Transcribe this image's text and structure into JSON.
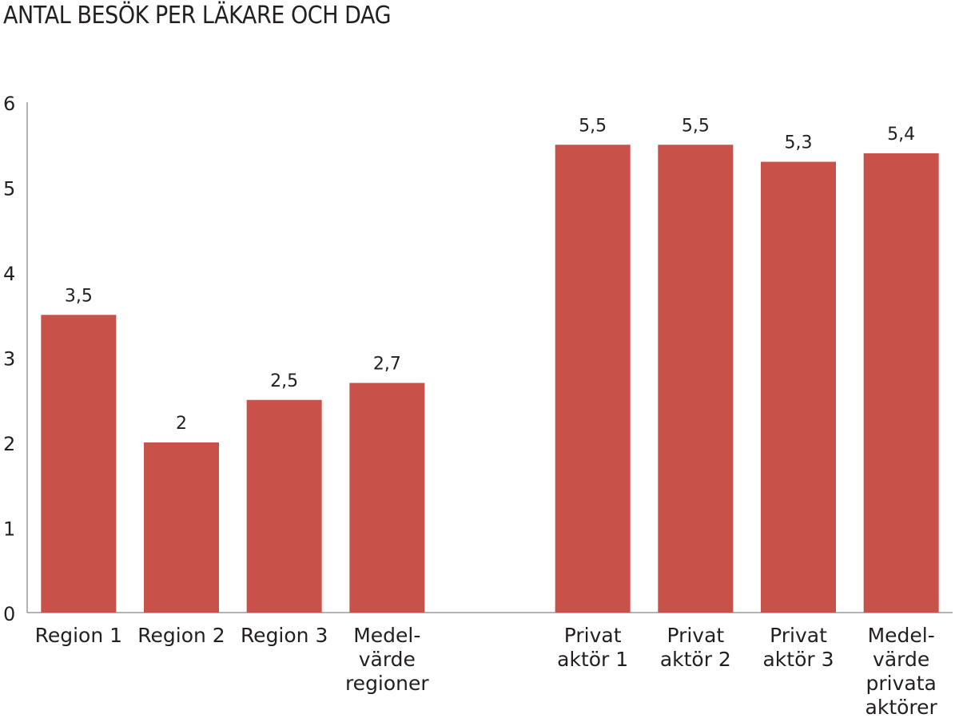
{
  "title": "ANTAL BESÖK PER LÄKARE OCH DAG",
  "chart_data": {
    "type": "bar",
    "title": "ANTAL BESÖK PER LÄKARE OCH DAG",
    "xlabel": "",
    "ylabel": "",
    "ylim": [
      0,
      6
    ],
    "yticks": [
      "0",
      "1",
      "2",
      "3",
      "4",
      "5",
      "6"
    ],
    "grid": false,
    "bar_color": "#c8524a",
    "categories": [
      [
        "Region 1"
      ],
      [
        "Region 2"
      ],
      [
        "Region 3"
      ],
      [
        "Medel-",
        "värde",
        "regioner"
      ],
      [
        ""
      ],
      [
        "Privat",
        "aktör 1"
      ],
      [
        "Privat",
        "aktör 2"
      ],
      [
        "Privat",
        "aktör 3"
      ],
      [
        "Medel-",
        "värde",
        "privata",
        "aktörer"
      ]
    ],
    "values": [
      3.5,
      2,
      2.5,
      2.7,
      null,
      5.5,
      5.5,
      5.3,
      5.4
    ],
    "value_labels": [
      "3,5",
      "2",
      "2,5",
      "2,7",
      "",
      "5,5",
      "5,5",
      "5,3",
      "5,4"
    ]
  }
}
